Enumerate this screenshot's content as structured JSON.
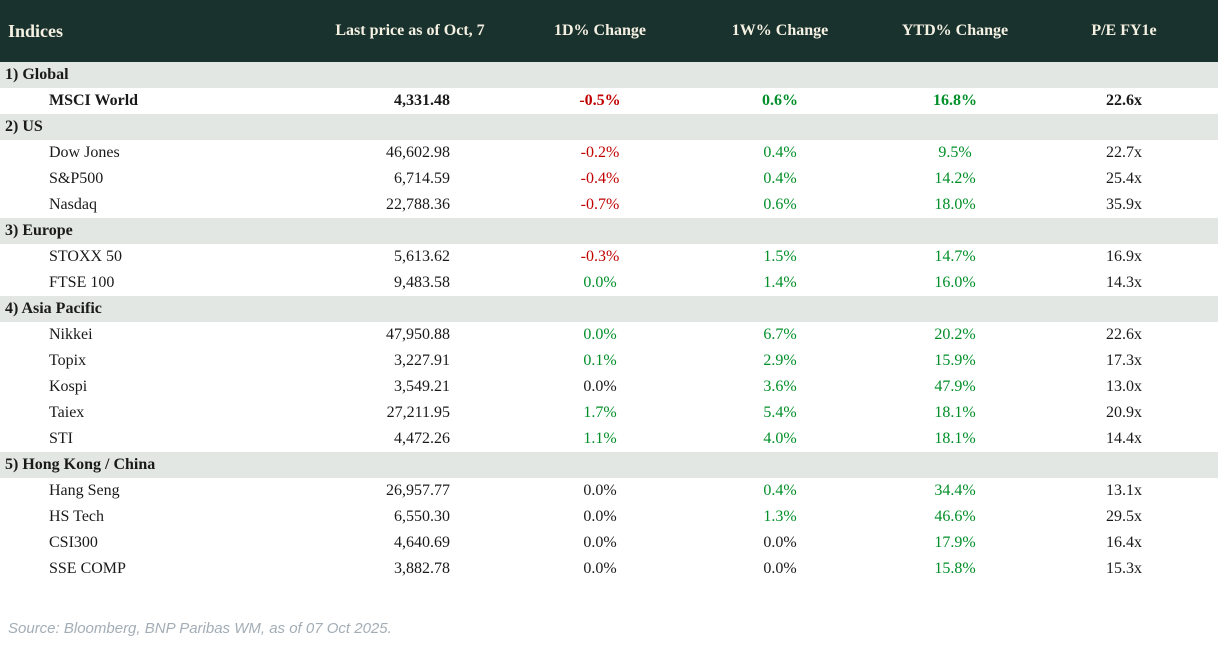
{
  "colors": {
    "header_bg": "#1a322e",
    "header_text": "#f4f0e2",
    "section_bg": "#e2e7e3",
    "negative": "#c00000",
    "positive": "#008f28",
    "neutral": "#1a1a1a"
  },
  "header": {
    "columns": [
      "Indices",
      "Last price as of Oct, 7",
      "1D% Change",
      "1W% Change",
      "YTD% Change",
      "P/E FY1e"
    ]
  },
  "sections": [
    {
      "label": "1) Global",
      "rows": [
        {
          "name": "MSCI World",
          "bold": true,
          "price": "4,331.48",
          "d1": "-0.5%",
          "d1_tone": "neg",
          "w1": "0.6%",
          "w1_tone": "pos",
          "ytd": "16.8%",
          "ytd_tone": "pos",
          "pe": "22.6x"
        }
      ]
    },
    {
      "label": "2) US",
      "rows": [
        {
          "name": "Dow Jones",
          "bold": false,
          "price": "46,602.98",
          "d1": "-0.2%",
          "d1_tone": "neg",
          "w1": "0.4%",
          "w1_tone": "pos",
          "ytd": "9.5%",
          "ytd_tone": "pos",
          "pe": "22.7x"
        },
        {
          "name": "S&P500",
          "bold": false,
          "price": "6,714.59",
          "d1": "-0.4%",
          "d1_tone": "neg",
          "w1": "0.4%",
          "w1_tone": "pos",
          "ytd": "14.2%",
          "ytd_tone": "pos",
          "pe": "25.4x"
        },
        {
          "name": "Nasdaq",
          "bold": false,
          "price": "22,788.36",
          "d1": "-0.7%",
          "d1_tone": "neg",
          "w1": "0.6%",
          "w1_tone": "pos",
          "ytd": "18.0%",
          "ytd_tone": "pos",
          "pe": "35.9x"
        }
      ]
    },
    {
      "label": "3) Europe",
      "rows": [
        {
          "name": "STOXX 50",
          "bold": false,
          "price": "5,613.62",
          "d1": "-0.3%",
          "d1_tone": "neg",
          "w1": "1.5%",
          "w1_tone": "pos",
          "ytd": "14.7%",
          "ytd_tone": "pos",
          "pe": "16.9x"
        },
        {
          "name": "FTSE 100",
          "bold": false,
          "price": "9,483.58",
          "d1": "0.0%",
          "d1_tone": "pos",
          "w1": "1.4%",
          "w1_tone": "pos",
          "ytd": "16.0%",
          "ytd_tone": "pos",
          "pe": "14.3x"
        }
      ]
    },
    {
      "label": "4) Asia Pacific",
      "rows": [
        {
          "name": "Nikkei",
          "bold": false,
          "price": "47,950.88",
          "d1": "0.0%",
          "d1_tone": "pos",
          "w1": "6.7%",
          "w1_tone": "pos",
          "ytd": "20.2%",
          "ytd_tone": "pos",
          "pe": "22.6x"
        },
        {
          "name": "Topix",
          "bold": false,
          "price": "3,227.91",
          "d1": "0.1%",
          "d1_tone": "pos",
          "w1": "2.9%",
          "w1_tone": "pos",
          "ytd": "15.9%",
          "ytd_tone": "pos",
          "pe": "17.3x"
        },
        {
          "name": "Kospi",
          "bold": false,
          "price": "3,549.21",
          "d1": "0.0%",
          "d1_tone": "flat",
          "w1": "3.6%",
          "w1_tone": "pos",
          "ytd": "47.9%",
          "ytd_tone": "pos",
          "pe": "13.0x"
        },
        {
          "name": "Taiex",
          "bold": false,
          "price": "27,211.95",
          "d1": "1.7%",
          "d1_tone": "pos",
          "w1": "5.4%",
          "w1_tone": "pos",
          "ytd": "18.1%",
          "ytd_tone": "pos",
          "pe": "20.9x"
        },
        {
          "name": "STI",
          "bold": false,
          "price": "4,472.26",
          "d1": "1.1%",
          "d1_tone": "pos",
          "w1": "4.0%",
          "w1_tone": "pos",
          "ytd": "18.1%",
          "ytd_tone": "pos",
          "pe": "14.4x"
        }
      ]
    },
    {
      "label": "5) Hong Kong / China",
      "rows": [
        {
          "name": "Hang Seng",
          "bold": false,
          "price": "26,957.77",
          "d1": "0.0%",
          "d1_tone": "flat",
          "w1": "0.4%",
          "w1_tone": "pos",
          "ytd": "34.4%",
          "ytd_tone": "pos",
          "pe": "13.1x"
        },
        {
          "name": "HS Tech",
          "bold": false,
          "price": "6,550.30",
          "d1": "0.0%",
          "d1_tone": "flat",
          "w1": "1.3%",
          "w1_tone": "pos",
          "ytd": "46.6%",
          "ytd_tone": "pos",
          "pe": "29.5x"
        },
        {
          "name": "CSI300",
          "bold": false,
          "price": "4,640.69",
          "d1": "0.0%",
          "d1_tone": "flat",
          "w1": "0.0%",
          "w1_tone": "flat",
          "ytd": "17.9%",
          "ytd_tone": "pos",
          "pe": "16.4x"
        },
        {
          "name": "SSE COMP",
          "bold": false,
          "price": "3,882.78",
          "d1": "0.0%",
          "d1_tone": "flat",
          "w1": "0.0%",
          "w1_tone": "flat",
          "ytd": "15.8%",
          "ytd_tone": "pos",
          "pe": "15.3x"
        }
      ]
    }
  ],
  "footer": {
    "source": "Source: Bloomberg, BNP Paribas WM, as of 07 Oct 2025."
  }
}
